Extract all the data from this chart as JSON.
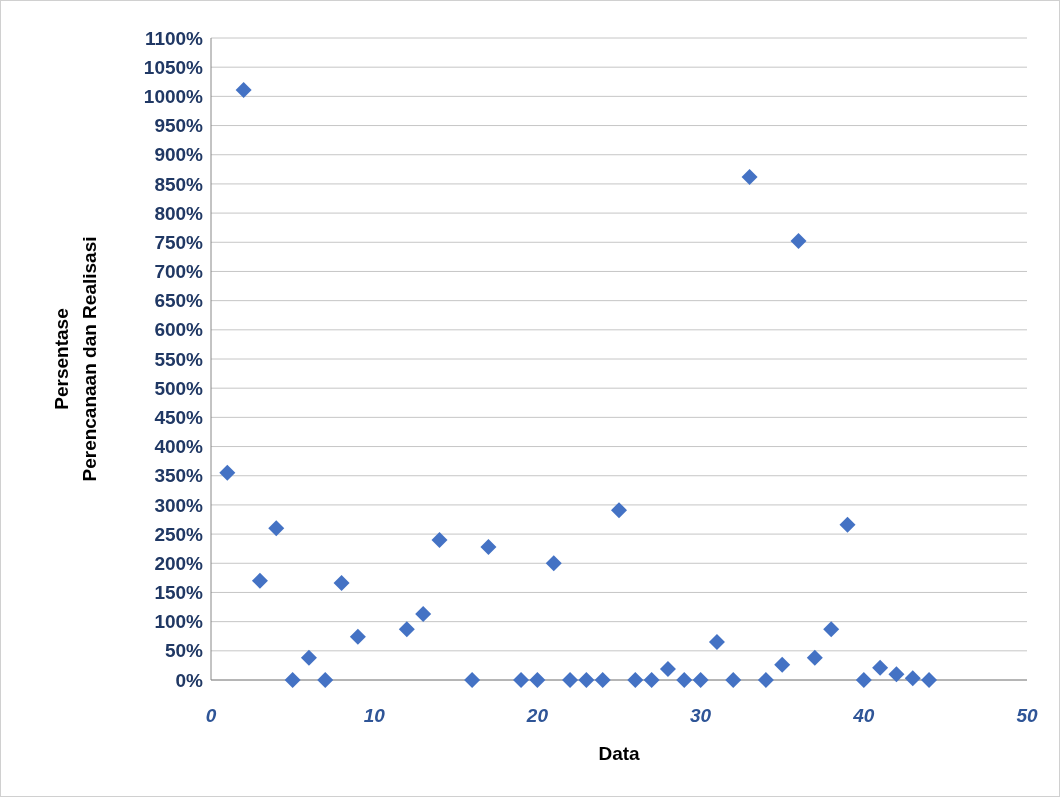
{
  "chart_data": {
    "type": "scatter",
    "xlabel": "Data",
    "ylabel": "Persentase\nPerencanaan dan Realisasi",
    "x": [
      1,
      2,
      3,
      4,
      5,
      6,
      7,
      8,
      9,
      12,
      13,
      14,
      16,
      17,
      19,
      20,
      21,
      22,
      23,
      24,
      25,
      26,
      27,
      28,
      29,
      30,
      31,
      32,
      33,
      34,
      35,
      36,
      37,
      38,
      39,
      40,
      41,
      42,
      43,
      44
    ],
    "values": [
      355,
      1011,
      170,
      260,
      0,
      38,
      0,
      166,
      74,
      87,
      113,
      240,
      0,
      228,
      0,
      0,
      200,
      0,
      0,
      0,
      291,
      0,
      0,
      19,
      0,
      0,
      65,
      0,
      862,
      0,
      26,
      752,
      38,
      87,
      266,
      0,
      21,
      10,
      3,
      0
    ],
    "color": "#4472c4",
    "marker": "diamond",
    "xlim": [
      0,
      50
    ],
    "xticks": [
      0,
      10,
      20,
      30,
      40,
      50
    ],
    "ylim": [
      0,
      1100
    ],
    "yticks": [
      {
        "value": 0,
        "label": "0%"
      },
      {
        "value": 50,
        "label": "50%"
      },
      {
        "value": 100,
        "label": "100%"
      },
      {
        "value": 150,
        "label": "150%"
      },
      {
        "value": 200,
        "label": "200%"
      },
      {
        "value": 250,
        "label": "250%"
      },
      {
        "value": 300,
        "label": "300%"
      },
      {
        "value": 350,
        "label": "350%"
      },
      {
        "value": 400,
        "label": "400%"
      },
      {
        "value": 450,
        "label": "450%"
      },
      {
        "value": 500,
        "label": "500%"
      },
      {
        "value": 550,
        "label": "550%"
      },
      {
        "value": 600,
        "label": "600%"
      },
      {
        "value": 650,
        "label": "650%"
      },
      {
        "value": 700,
        "label": "700%"
      },
      {
        "value": 750,
        "label": "750%"
      },
      {
        "value": 800,
        "label": "800%"
      },
      {
        "value": 850,
        "label": "850%"
      },
      {
        "value": 900,
        "label": "900%"
      },
      {
        "value": 950,
        "label": "950%"
      },
      {
        "value": 1000,
        "label": "1000%"
      },
      {
        "value": 1050,
        "label": "1050%"
      },
      {
        "value": 1100,
        "label": "1100%"
      }
    ],
    "grid": "y"
  }
}
